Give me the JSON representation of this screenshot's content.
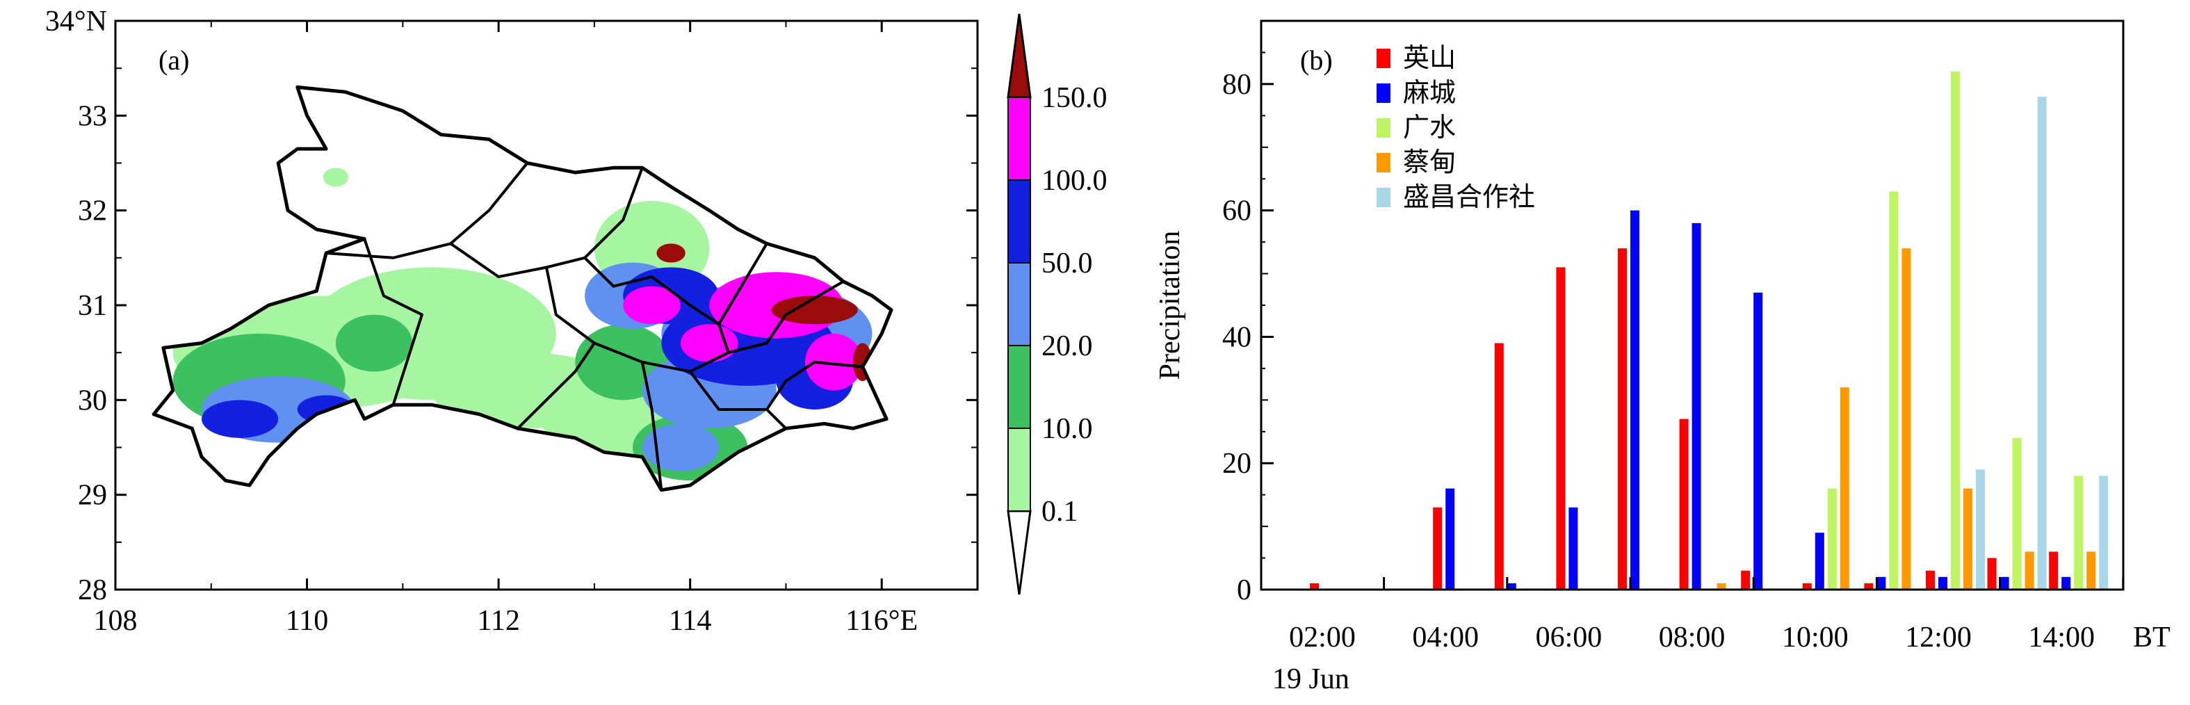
{
  "colors": {
    "ying_shan": "#ff0000",
    "ma_cheng": "#0000ff",
    "guang_shui": "#bff562",
    "cai_dian": "#ff9900",
    "sheng_chang": "#a8d8e8",
    "c_0_1": "#a6f5a0",
    "c_10": "#3cc060",
    "c_20": "#6090f0",
    "c_50": "#1420e0",
    "c_100": "#ff00ff",
    "c_150": "#9b0b0b",
    "map_bg": "#ffffff"
  },
  "panel_a": {
    "label": "(a)",
    "lat_ticks": [
      "34°N",
      "33",
      "32",
      "31",
      "30",
      "29",
      "28"
    ],
    "lon_ticks": [
      "108",
      "110",
      "112",
      "114",
      "116°E"
    ],
    "colorbar": {
      "levels": [
        "0.1",
        "10.0",
        "20.0",
        "50.0",
        "100.0",
        "150.0"
      ],
      "level_colors": [
        "c_0_1",
        "c_10",
        "c_20",
        "c_50",
        "c_100",
        "c_150"
      ]
    },
    "rain_patches": [
      {
        "color": "c_0_1",
        "lon": 110.1,
        "lat": 30.5,
        "rx": 1.5,
        "ry": 0.6
      },
      {
        "color": "c_0_1",
        "lon": 111.3,
        "lat": 30.7,
        "rx": 1.3,
        "ry": 0.7
      },
      {
        "color": "c_0_1",
        "lon": 112.3,
        "lat": 30.1,
        "rx": 1.0,
        "ry": 0.4
      },
      {
        "color": "c_0_1",
        "lon": 113.6,
        "lat": 31.6,
        "rx": 0.6,
        "ry": 0.5
      },
      {
        "color": "c_0_1",
        "lon": 113.2,
        "lat": 29.9,
        "rx": 0.8,
        "ry": 0.5
      },
      {
        "color": "c_0_1",
        "lon": 110.3,
        "lat": 32.35,
        "rx": 0.13,
        "ry": 0.1
      },
      {
        "color": "c_10",
        "lon": 109.5,
        "lat": 30.2,
        "rx": 0.9,
        "ry": 0.5
      },
      {
        "color": "c_10",
        "lon": 110.7,
        "lat": 30.6,
        "rx": 0.4,
        "ry": 0.3
      },
      {
        "color": "c_10",
        "lon": 113.3,
        "lat": 30.4,
        "rx": 0.5,
        "ry": 0.4
      },
      {
        "color": "c_10",
        "lon": 114.0,
        "lat": 29.5,
        "rx": 0.6,
        "ry": 0.35
      },
      {
        "color": "c_20",
        "lon": 109.7,
        "lat": 29.9,
        "rx": 0.8,
        "ry": 0.35
      },
      {
        "color": "c_20",
        "lon": 113.4,
        "lat": 31.1,
        "rx": 0.5,
        "ry": 0.35
      },
      {
        "color": "c_20",
        "lon": 114.2,
        "lat": 30.1,
        "rx": 0.7,
        "ry": 0.4
      },
      {
        "color": "c_20",
        "lon": 114.8,
        "lat": 30.7,
        "rx": 1.1,
        "ry": 0.55
      },
      {
        "color": "c_20",
        "lon": 113.9,
        "lat": 29.5,
        "rx": 0.4,
        "ry": 0.25
      },
      {
        "color": "c_50",
        "lon": 109.3,
        "lat": 29.8,
        "rx": 0.4,
        "ry": 0.2
      },
      {
        "color": "c_50",
        "lon": 110.2,
        "lat": 29.9,
        "rx": 0.3,
        "ry": 0.15
      },
      {
        "color": "c_50",
        "lon": 114.6,
        "lat": 30.6,
        "rx": 0.9,
        "ry": 0.45
      },
      {
        "color": "c_50",
        "lon": 113.8,
        "lat": 31.1,
        "rx": 0.5,
        "ry": 0.3
      },
      {
        "color": "c_50",
        "lon": 115.3,
        "lat": 30.2,
        "rx": 0.4,
        "ry": 0.3
      },
      {
        "color": "c_100",
        "lon": 114.9,
        "lat": 31.0,
        "rx": 0.7,
        "ry": 0.35
      },
      {
        "color": "c_100",
        "lon": 113.6,
        "lat": 31.0,
        "rx": 0.3,
        "ry": 0.2
      },
      {
        "color": "c_100",
        "lon": 115.5,
        "lat": 30.4,
        "rx": 0.3,
        "ry": 0.3
      },
      {
        "color": "c_100",
        "lon": 114.2,
        "lat": 30.6,
        "rx": 0.3,
        "ry": 0.2
      },
      {
        "color": "c_150",
        "lon": 115.3,
        "lat": 30.95,
        "rx": 0.45,
        "ry": 0.15
      },
      {
        "color": "c_150",
        "lon": 113.8,
        "lat": 31.55,
        "rx": 0.15,
        "ry": 0.1
      },
      {
        "color": "c_150",
        "lon": 115.8,
        "lat": 30.4,
        "rx": 0.1,
        "ry": 0.2
      }
    ]
  },
  "chart_data": {
    "type": "bar",
    "panel_label": "(b)",
    "title": "",
    "xlabel": "BT",
    "ylabel": "Precipitation",
    "ylim": [
      0,
      90
    ],
    "yticks": [
      "0",
      "20",
      "40",
      "60",
      "80"
    ],
    "categories": [
      "02:00",
      "03:00",
      "04:00",
      "05:00",
      "06:00",
      "07:00",
      "08:00",
      "09:00",
      "10:00",
      "11:00",
      "12:00",
      "13:00",
      "14:00"
    ],
    "xtick_labels": [
      "02:00",
      "04:00",
      "06:00",
      "08:00",
      "10:00",
      "12:00",
      "14:00"
    ],
    "date_label": "19 Jun",
    "series": [
      {
        "name": "英山",
        "color_key": "ying_shan",
        "values": [
          1,
          0,
          13,
          39,
          51,
          54,
          27,
          3,
          1,
          1,
          3,
          5,
          6
        ]
      },
      {
        "name": "麻城",
        "color_key": "ma_cheng",
        "values": [
          0,
          0,
          16,
          1,
          13,
          60,
          58,
          47,
          9,
          2,
          2,
          2,
          2
        ]
      },
      {
        "name": "广水",
        "color_key": "guang_shui",
        "values": [
          0,
          0,
          0,
          0,
          0,
          0,
          0,
          0,
          16,
          63,
          82,
          24,
          18
        ]
      },
      {
        "name": "蔡甸",
        "color_key": "cai_dian",
        "values": [
          0,
          0,
          0,
          0,
          0,
          0,
          1,
          0,
          32,
          54,
          16,
          6,
          6
        ]
      },
      {
        "name": "盛昌合作社",
        "color_key": "sheng_chang",
        "values": [
          0,
          0,
          0,
          0,
          0,
          0,
          0,
          0,
          0,
          0,
          19,
          78,
          18
        ]
      }
    ]
  }
}
